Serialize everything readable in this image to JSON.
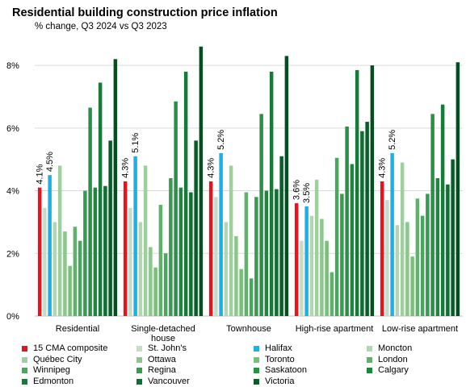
{
  "chart_data": {
    "type": "bar",
    "title": "Residential building construction price inflation",
    "subtitle": "% change, Q3 2024 vs Q3 2023",
    "xlabel": "",
    "ylabel": "",
    "ylim": [
      0,
      8.8
    ],
    "yticks": [
      "0%",
      "2%",
      "4%",
      "6%",
      "8%"
    ],
    "ytick_values": [
      0,
      2,
      4,
      6,
      8
    ],
    "grid": true,
    "legend_position": "bottom",
    "categories": [
      "Residential",
      "Single-detached house",
      "Townhouse",
      "High-rise apartment",
      "Low-rise apartment"
    ],
    "series": [
      {
        "name": "15 CMA composite",
        "color": "#e8141b",
        "values": [
          4.1,
          4.3,
          4.3,
          3.6,
          4.3
        ]
      },
      {
        "name": "St. John's",
        "color": "#c4ddc4",
        "values": [
          3.45,
          3.45,
          3.8,
          2.4,
          3.7
        ]
      },
      {
        "name": "Halifax",
        "color": "#1cb0e8",
        "values": [
          4.5,
          5.1,
          5.2,
          3.5,
          5.2
        ]
      },
      {
        "name": "Moncton",
        "color": "#b1d6b1",
        "values": [
          3.0,
          3.0,
          3.0,
          3.2,
          2.9
        ]
      },
      {
        "name": "Québec City",
        "color": "#9fce9f",
        "values": [
          4.8,
          4.8,
          4.8,
          4.35,
          4.9
        ]
      },
      {
        "name": "Ottawa",
        "color": "#8dc68d",
        "values": [
          2.7,
          2.2,
          2.55,
          3.1,
          3.0
        ]
      },
      {
        "name": "Toronto",
        "color": "#7bbe7b",
        "values": [
          1.6,
          1.55,
          1.5,
          2.4,
          1.9
        ]
      },
      {
        "name": "London",
        "color": "#5fb26b",
        "values": [
          2.85,
          3.55,
          3.95,
          1.4,
          3.75
        ]
      },
      {
        "name": "Winnipeg",
        "color": "#48a75d",
        "values": [
          2.4,
          2.0,
          1.2,
          5.05,
          3.2
        ]
      },
      {
        "name": "Regina",
        "color": "#379c52",
        "values": [
          4.0,
          4.4,
          3.8,
          3.9,
          3.9
        ]
      },
      {
        "name": "Saskatoon",
        "color": "#2a9048",
        "values": [
          6.65,
          6.85,
          6.45,
          6.05,
          6.45
        ]
      },
      {
        "name": "Calgary",
        "color": "#1f8640",
        "values": [
          4.1,
          4.1,
          4.0,
          4.85,
          4.4
        ]
      },
      {
        "name": "Edmonton",
        "color": "#167b39",
        "values": [
          7.45,
          7.8,
          7.8,
          7.85,
          6.75
        ]
      },
      {
        "name": "Vancouver",
        "color": "#0f6e31",
        "values": [
          4.15,
          3.95,
          4.05,
          5.9,
          4.2
        ]
      },
      {
        "name": "Victoria",
        "color": "#0a5d28",
        "values": [
          5.6,
          5.6,
          5.1,
          6.2,
          5.0
        ]
      },
      {
        "name": "",
        "color": "#064d20",
        "values": [
          8.2,
          8.6,
          8.3,
          8.0,
          8.1
        ]
      }
    ],
    "data_labels": [
      {
        "series": 0,
        "category": 0,
        "text": "4.1%"
      },
      {
        "series": 2,
        "category": 0,
        "text": "4.5%"
      },
      {
        "series": 0,
        "category": 1,
        "text": "4.3%"
      },
      {
        "series": 2,
        "category": 1,
        "text": "5.1%"
      },
      {
        "series": 0,
        "category": 2,
        "text": "4.3%"
      },
      {
        "series": 2,
        "category": 2,
        "text": "5.2%"
      },
      {
        "series": 0,
        "category": 3,
        "text": "3.6%"
      },
      {
        "series": 2,
        "category": 3,
        "text": "3.5%"
      },
      {
        "series": 0,
        "category": 4,
        "text": "4.3%"
      },
      {
        "series": 2,
        "category": 4,
        "text": "5.2%"
      }
    ]
  }
}
